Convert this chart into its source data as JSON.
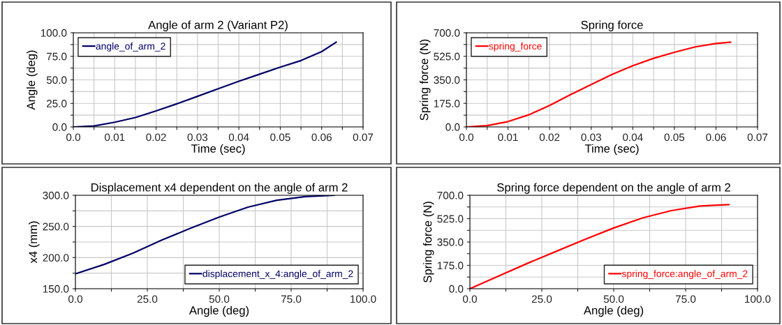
{
  "chart_data": [
    {
      "type": "line",
      "title": "Angle of arm 2 (Variant P2)",
      "xlabel": "Time (sec)",
      "ylabel": "Angle (deg)",
      "grid": true,
      "legend": "top left",
      "xlim": [
        0,
        0.07
      ],
      "xticks": [
        {
          "value": 0,
          "label": "0.0"
        },
        {
          "value": 0.005,
          "label": null
        },
        0.01,
        {
          "value": 0.015,
          "label": null
        },
        0.02,
        {
          "value": 0.025,
          "label": null
        },
        0.03,
        {
          "value": 0.035,
          "label": null
        },
        0.04,
        {
          "value": 0.045,
          "label": null
        },
        0.05,
        {
          "value": 0.055,
          "label": null
        },
        0.06,
        {
          "value": 0.065,
          "label": null
        },
        0.07
      ],
      "ylim": [
        0,
        100
      ],
      "yticks": [
        {
          "value": 0,
          "label": "0.0"
        },
        {
          "value": 12.5,
          "label": null
        },
        {
          "value": 25,
          "label": "25.0"
        },
        {
          "value": 37.5,
          "label": null
        },
        {
          "value": 50,
          "label": "50.0"
        },
        {
          "value": 62.5,
          "label": null
        },
        {
          "value": 75,
          "label": "75.0"
        },
        {
          "value": 87.5,
          "label": null
        },
        {
          "value": 100,
          "label": "100.0"
        }
      ],
      "series": [
        {
          "name": "angle_of_arm_2",
          "color": "#000066",
          "x": [
            0,
            0.005,
            0.01,
            0.015,
            0.02,
            0.025,
            0.03,
            0.035,
            0.04,
            0.045,
            0.05,
            0.055,
            0.06,
            0.0635
          ],
          "values": [
            0,
            1,
            5,
            10,
            17,
            24.5,
            32.5,
            40.5,
            48.5,
            56,
            63.5,
            70.5,
            80,
            90
          ]
        }
      ]
    },
    {
      "type": "line",
      "title": "Spring force",
      "xlabel": "Time (sec)",
      "ylabel": "Spring force (N)",
      "grid": true,
      "legend": "top left",
      "xlim": [
        0,
        0.07
      ],
      "xticks": [
        {
          "value": 0,
          "label": "0.0"
        },
        {
          "value": 0.005,
          "label": null
        },
        0.01,
        {
          "value": 0.015,
          "label": null
        },
        0.02,
        {
          "value": 0.025,
          "label": null
        },
        0.03,
        {
          "value": 0.035,
          "label": null
        },
        0.04,
        {
          "value": 0.045,
          "label": null
        },
        0.05,
        {
          "value": 0.055,
          "label": null
        },
        0.06,
        {
          "value": 0.065,
          "label": null
        },
        0.07
      ],
      "ylim": [
        0,
        700
      ],
      "yticks": [
        {
          "value": 0,
          "label": "0.0"
        },
        {
          "value": 87.5,
          "label": null
        },
        {
          "value": 175,
          "label": "175.0"
        },
        {
          "value": 262.5,
          "label": null
        },
        {
          "value": 350,
          "label": "350.0"
        },
        {
          "value": 437.5,
          "label": null
        },
        {
          "value": 525,
          "label": "525.0"
        },
        {
          "value": 612.5,
          "label": null
        },
        {
          "value": 700,
          "label": "700.0"
        }
      ],
      "series": [
        {
          "name": "spring_force",
          "color": "#ff0000",
          "x": [
            0,
            0.005,
            0.01,
            0.015,
            0.02,
            0.025,
            0.03,
            0.035,
            0.04,
            0.045,
            0.05,
            0.055,
            0.06,
            0.0635
          ],
          "values": [
            0,
            10,
            40,
            90,
            160,
            240,
            315,
            390,
            455,
            510,
            555,
            595,
            620,
            630
          ]
        }
      ]
    },
    {
      "type": "line",
      "title": "Displacement x4 dependent on the angle of arm 2",
      "xlabel": "Angle (deg)",
      "ylabel": "x4 (mm)",
      "grid": true,
      "legend": "bottom right",
      "xlim": [
        0,
        100
      ],
      "xticks": [
        {
          "value": 0,
          "label": "0.0"
        },
        {
          "value": 12.5,
          "label": null
        },
        {
          "value": 25,
          "label": "25.0"
        },
        {
          "value": 37.5,
          "label": null
        },
        {
          "value": 50,
          "label": "50.0"
        },
        {
          "value": 62.5,
          "label": null
        },
        {
          "value": 75,
          "label": "75.0"
        },
        {
          "value": 87.5,
          "label": null
        },
        {
          "value": 100,
          "label": "100.0"
        }
      ],
      "ylim": [
        150,
        300
      ],
      "yticks": [
        {
          "value": 150,
          "label": "150.0"
        },
        {
          "value": 175,
          "label": null
        },
        {
          "value": 200,
          "label": "200.0"
        },
        {
          "value": 225,
          "label": null
        },
        {
          "value": 250,
          "label": "250.0"
        },
        {
          "value": 275,
          "label": null
        },
        {
          "value": 300,
          "label": "300.0"
        }
      ],
      "series": [
        {
          "name": "displacement_x_4:angle_of_arm_2",
          "color": "#000066",
          "x": [
            0,
            10,
            20,
            30,
            40,
            50,
            60,
            70,
            80,
            90
          ],
          "values": [
            174,
            189,
            207,
            228,
            247,
            265,
            281,
            292,
            298,
            300
          ]
        }
      ]
    },
    {
      "type": "line",
      "title": "Spring force dependent on the angle of arm 2",
      "xlabel": "Angle (deg)",
      "ylabel": "Spring force (N)",
      "grid": true,
      "legend": "bottom right",
      "xlim": [
        0,
        100
      ],
      "xticks": [
        {
          "value": 0,
          "label": "0.0"
        },
        {
          "value": 12.5,
          "label": null
        },
        {
          "value": 25,
          "label": "25.0"
        },
        {
          "value": 37.5,
          "label": null
        },
        {
          "value": 50,
          "label": "50.0"
        },
        {
          "value": 62.5,
          "label": null
        },
        {
          "value": 75,
          "label": "75.0"
        },
        {
          "value": 87.5,
          "label": null
        },
        {
          "value": 100,
          "label": "100.0"
        }
      ],
      "ylim": [
        0,
        700
      ],
      "yticks": [
        {
          "value": 0,
          "label": "0.0"
        },
        {
          "value": 87.5,
          "label": null
        },
        {
          "value": 175,
          "label": "175.0"
        },
        {
          "value": 262.5,
          "label": null
        },
        {
          "value": 350,
          "label": "350.0"
        },
        {
          "value": 437.5,
          "label": null
        },
        {
          "value": 525,
          "label": "525.0"
        },
        {
          "value": 612.5,
          "label": null
        },
        {
          "value": 700,
          "label": "700.0"
        }
      ],
      "series": [
        {
          "name": "spring_force:angle_of_arm_2",
          "color": "#ff0000",
          "x": [
            0,
            10,
            20,
            30,
            40,
            50,
            60,
            70,
            80,
            90
          ],
          "values": [
            0,
            95,
            190,
            280,
            370,
            455,
            530,
            585,
            620,
            630
          ]
        }
      ]
    }
  ]
}
